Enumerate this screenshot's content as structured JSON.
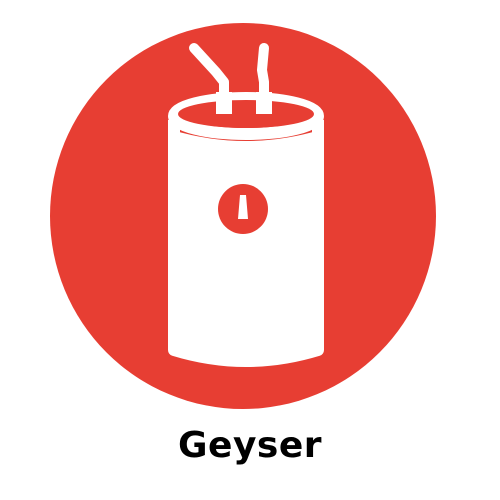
{
  "icon": {
    "name": "geyser-icon",
    "background_color": "#e73e33",
    "foreground_color": "#ffffff"
  },
  "caption": {
    "text": "Geyser",
    "color": "#000000"
  }
}
